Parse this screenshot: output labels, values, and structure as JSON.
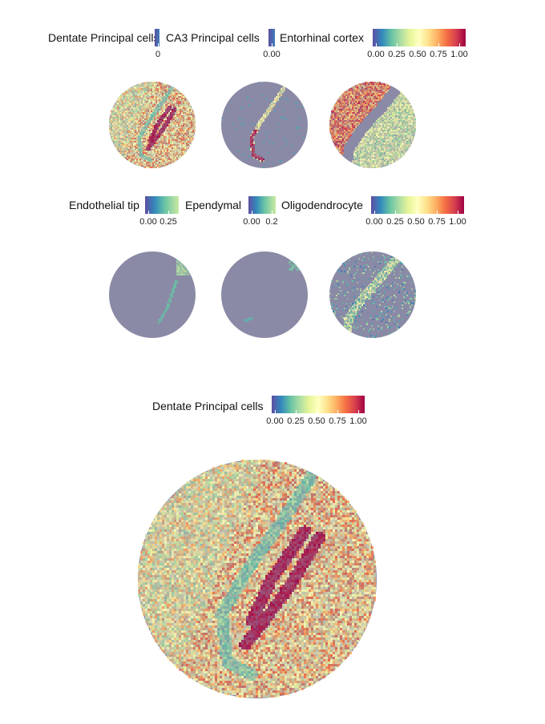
{
  "colorscale": {
    "name": "Spectral (reversed)",
    "stops": [
      "#5e4fa2",
      "#3288bd",
      "#66c2a5",
      "#abdda4",
      "#e6f598",
      "#ffffbf",
      "#fee08b",
      "#fdae61",
      "#f46d43",
      "#d53e4f",
      "#9e0142"
    ],
    "background": "#8a8aa6"
  },
  "chart_data": [
    {
      "type": "heatmap",
      "title": "Dentate Principal cells",
      "ticks": [
        "0"
      ],
      "range": [
        0,
        0.02
      ],
      "pattern": "dentate_small"
    },
    {
      "type": "heatmap",
      "title": "CA3 Principal cells",
      "ticks": [
        "0.00"
      ],
      "range": [
        0,
        0.01
      ],
      "pattern": "ca3"
    },
    {
      "type": "heatmap",
      "title": "Entorhinal cortex",
      "ticks": [
        "0.00",
        "0.25",
        "0.50",
        "0.75",
        "1.00"
      ],
      "range": [
        0,
        1
      ],
      "pattern": "entorhinal"
    },
    {
      "type": "heatmap",
      "title": "Endothelial tip",
      "ticks": [
        "0.00",
        "0.25"
      ],
      "range": [
        0,
        0.3
      ],
      "pattern": "endothelial"
    },
    {
      "type": "heatmap",
      "title": "Ependymal",
      "ticks": [
        "0.00",
        "0.2"
      ],
      "range": [
        0,
        0.25
      ],
      "pattern": "ependymal"
    },
    {
      "type": "heatmap",
      "title": "Oligodendrocyte",
      "ticks": [
        "0.00",
        "0.25",
        "0.50",
        "0.75",
        "1.00"
      ],
      "range": [
        0,
        1
      ],
      "pattern": "oligo"
    },
    {
      "type": "heatmap",
      "title": "Dentate Principal cells",
      "ticks": [
        "0.00",
        "0.25",
        "0.50",
        "0.75",
        "1.00"
      ],
      "range": [
        0,
        1
      ],
      "pattern": "dentate_large"
    }
  ]
}
